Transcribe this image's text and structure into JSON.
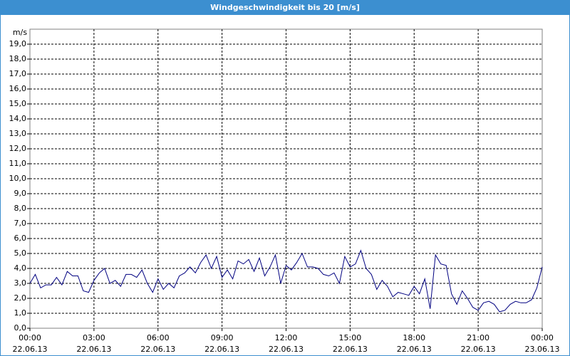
{
  "chart_data": {
    "type": "line",
    "title": "Windgeschwindigkeit bis 20 [m/s]",
    "y_unit": "m/s",
    "xlim": [
      0,
      24
    ],
    "xticks": [
      {
        "value": 0,
        "label": "00:00"
      },
      {
        "value": 3,
        "label": "03:00"
      },
      {
        "value": 6,
        "label": "06:00"
      },
      {
        "value": 9,
        "label": "09:00"
      },
      {
        "value": 12,
        "label": "12:00"
      },
      {
        "value": 15,
        "label": "15:00"
      },
      {
        "value": 18,
        "label": "18:00"
      },
      {
        "value": 21,
        "label": "21:00"
      },
      {
        "value": 24,
        "label": "00:00"
      }
    ],
    "xtick_dates": [
      "22.06.13",
      "22.06.13",
      "22.06.13",
      "22.06.13",
      "22.06.13",
      "22.06.13",
      "22.06.13",
      "22.06.13",
      "23.06.13"
    ],
    "ylim": [
      0,
      20
    ],
    "yticks": [
      {
        "value": 0,
        "label": "0,0"
      },
      {
        "value": 1,
        "label": "1,0"
      },
      {
        "value": 2,
        "label": "2,0"
      },
      {
        "value": 3,
        "label": "3,0"
      },
      {
        "value": 4,
        "label": "4,0"
      },
      {
        "value": 5,
        "label": "5,0"
      },
      {
        "value": 6,
        "label": "6,0"
      },
      {
        "value": 7,
        "label": "7,0"
      },
      {
        "value": 8,
        "label": "8,0"
      },
      {
        "value": 9,
        "label": "9,0"
      },
      {
        "value": 10,
        "label": "10,0"
      },
      {
        "value": 11,
        "label": "11,0"
      },
      {
        "value": 12,
        "label": "12,0"
      },
      {
        "value": 13,
        "label": "13,0"
      },
      {
        "value": 14,
        "label": "14,0"
      },
      {
        "value": 15,
        "label": "15,0"
      },
      {
        "value": 16,
        "label": "16,0"
      },
      {
        "value": 17,
        "label": "17,0"
      },
      {
        "value": 18,
        "label": "18,0"
      },
      {
        "value": 19,
        "label": "19,0"
      }
    ],
    "grid": true,
    "series": [
      {
        "color": "#000080",
        "x": [
          0,
          0.25,
          0.5,
          0.75,
          1,
          1.25,
          1.5,
          1.75,
          2,
          2.25,
          2.5,
          2.75,
          3,
          3.25,
          3.5,
          3.75,
          4,
          4.25,
          4.5,
          4.75,
          5,
          5.25,
          5.5,
          5.75,
          6,
          6.25,
          6.5,
          6.75,
          7,
          7.25,
          7.5,
          7.75,
          8,
          8.25,
          8.5,
          8.75,
          9,
          9.25,
          9.5,
          9.75,
          10,
          10.25,
          10.5,
          10.75,
          11,
          11.25,
          11.5,
          11.75,
          12,
          12.25,
          12.5,
          12.75,
          13,
          13.25,
          13.5,
          13.75,
          14,
          14.25,
          14.5,
          14.75,
          15,
          15.25,
          15.5,
          15.75,
          16,
          16.25,
          16.5,
          16.75,
          17,
          17.25,
          17.5,
          17.75,
          18,
          18.25,
          18.5,
          18.75,
          19,
          19.25,
          19.5,
          19.75,
          20,
          20.25,
          20.5,
          20.75,
          21,
          21.25,
          21.5,
          21.75,
          22,
          22.25,
          22.5,
          22.75,
          23,
          23.25,
          23.5,
          23.75,
          24
        ],
        "values": [
          3.0,
          3.6,
          2.7,
          2.9,
          2.9,
          3.4,
          2.9,
          3.8,
          3.5,
          3.5,
          2.5,
          2.4,
          3.2,
          3.7,
          4.0,
          3.0,
          3.2,
          2.8,
          3.6,
          3.6,
          3.4,
          3.9,
          3.0,
          2.4,
          3.3,
          2.6,
          3.0,
          2.7,
          3.5,
          3.7,
          4.1,
          3.7,
          4.4,
          4.9,
          4.0,
          4.8,
          3.4,
          3.9,
          3.3,
          4.5,
          4.3,
          4.6,
          3.8,
          4.7,
          3.5,
          4.1,
          4.9,
          3.0,
          4.2,
          3.9,
          4.4,
          5.0,
          4.1,
          4.1,
          4.0,
          3.6,
          3.5,
          3.7,
          3.0,
          4.8,
          4.1,
          4.3,
          5.2,
          4.0,
          3.6,
          2.6,
          3.2,
          2.8,
          2.1,
          2.4,
          2.3,
          2.2,
          2.8,
          2.3,
          3.3,
          1.3,
          4.9,
          4.3,
          4.2,
          2.3,
          1.6,
          2.5,
          2.0,
          1.4,
          1.2,
          1.7,
          1.8,
          1.6,
          1.1,
          1.2,
          1.6,
          1.8,
          1.7,
          1.7,
          1.9,
          2.7,
          4.1
        ]
      }
    ]
  }
}
